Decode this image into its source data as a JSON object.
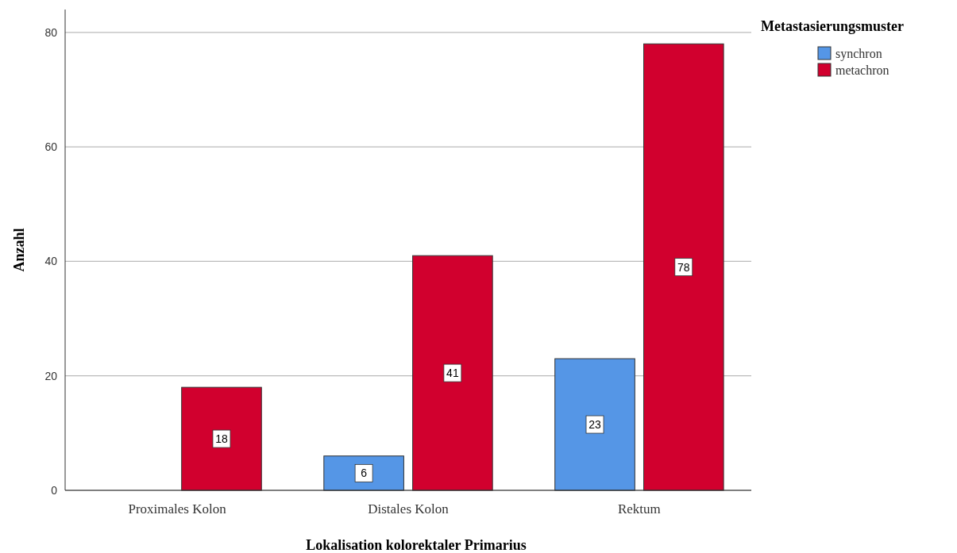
{
  "chart_data": {
    "type": "bar",
    "xlabel": "Lokalisation kolorektaler Primarius",
    "ylabel": "Anzahl",
    "legend_title": "Metastasierungsmuster",
    "categories": [
      "Proximales Kolon",
      "Distales Kolon",
      "Rektum"
    ],
    "series": [
      {
        "name": "synchron",
        "color": "#5596e6",
        "values": [
          null,
          6,
          23
        ]
      },
      {
        "name": "metachron",
        "color": "#d1002e",
        "values": [
          18,
          41,
          78
        ]
      }
    ],
    "ylim": [
      0,
      84
    ],
    "yticks": [
      0,
      20,
      40,
      60,
      80
    ],
    "grid": "y",
    "legend": "top right",
    "data_labels": true
  }
}
